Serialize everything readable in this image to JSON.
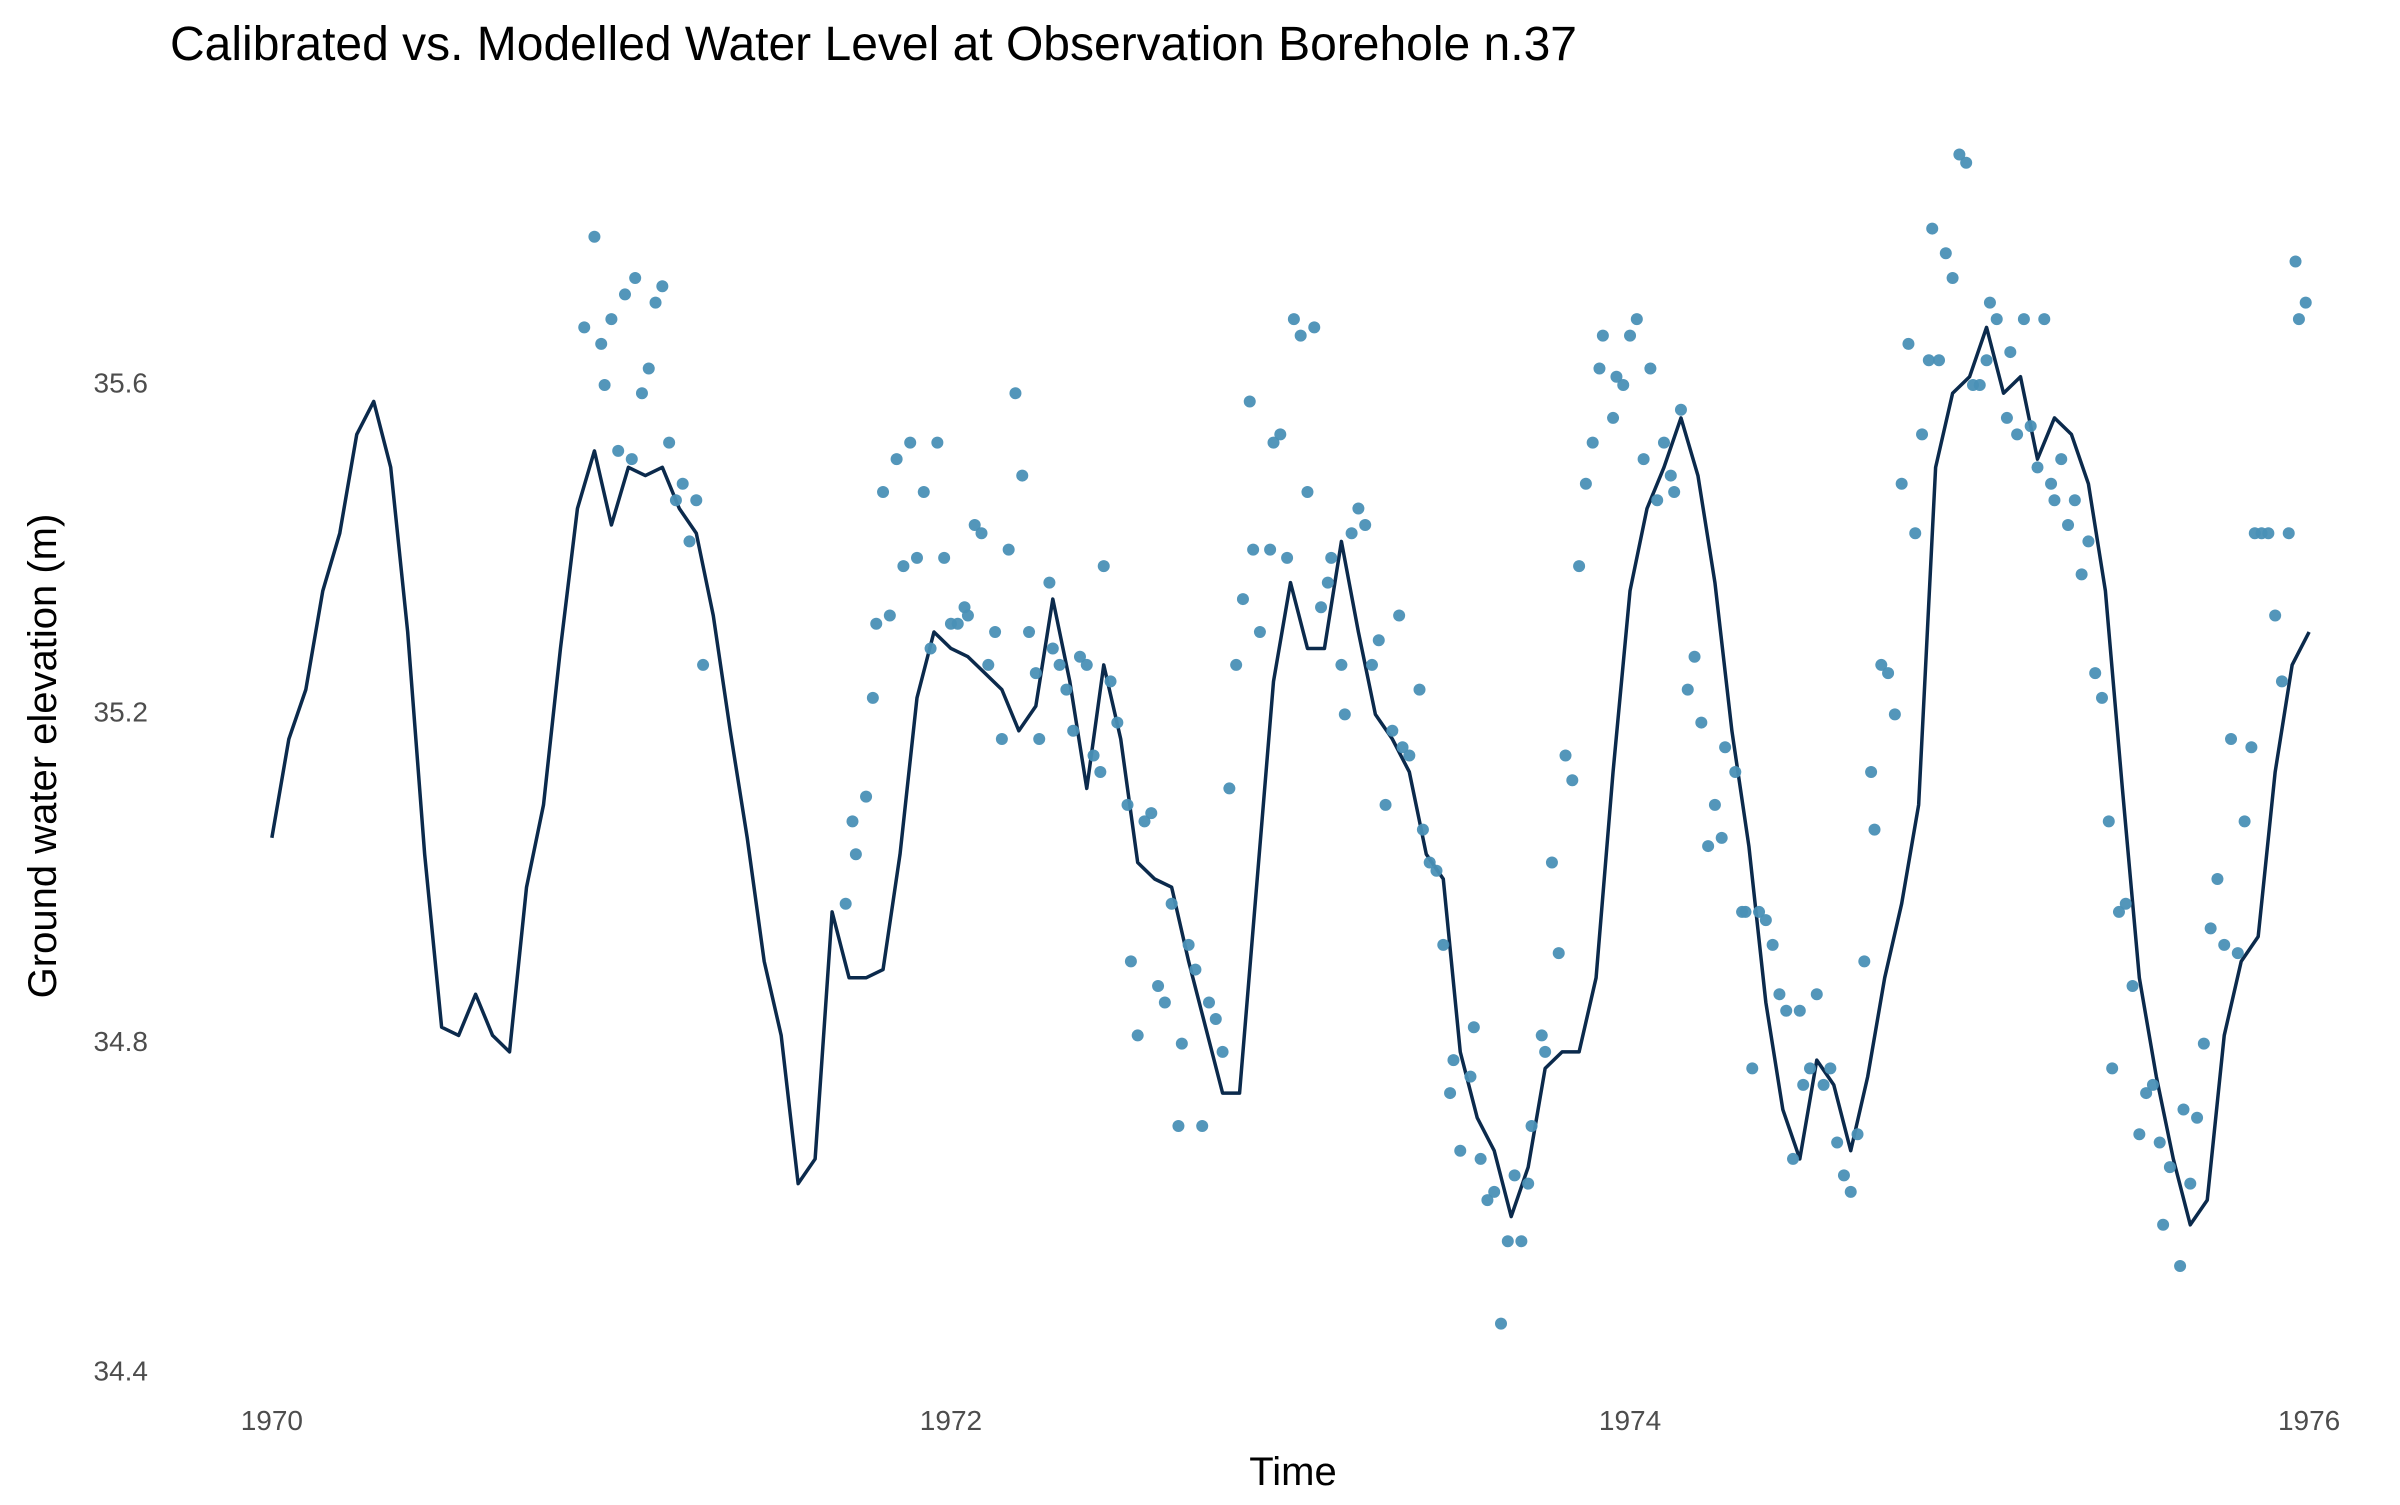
{
  "chart_data": {
    "type": "line",
    "title": "Calibrated vs. Modelled Water Level at Observation Borehole n.37",
    "x_label": "Time",
    "y_label": "Ground water elevation (m)",
    "xlim": [
      1969.7,
      1976.25
    ],
    "xticks": [
      1970,
      1972,
      1974,
      1976
    ],
    "ylim": [
      34.4,
      35.9
    ],
    "yticks": [
      34.4,
      34.8,
      35.2,
      35.6
    ],
    "grid": false,
    "series": [
      {
        "type": "line",
        "color": "#0b2a4c",
        "x": [
          1970,
          1970.05,
          1970.1,
          1970.15,
          1970.2,
          1970.25,
          1970.3,
          1970.35,
          1970.4,
          1970.45,
          1970.5,
          1970.55,
          1970.6,
          1970.65,
          1970.7,
          1970.75,
          1970.8,
          1970.85,
          1970.9,
          1970.95,
          1971,
          1971.05,
          1971.1,
          1971.15,
          1971.2,
          1971.25,
          1971.3,
          1971.35,
          1971.4,
          1971.45,
          1971.5,
          1971.55,
          1971.6,
          1971.65,
          1971.7,
          1971.75,
          1971.8,
          1971.85,
          1971.9,
          1971.95,
          1972,
          1972.05,
          1972.1,
          1972.15,
          1972.2,
          1972.25,
          1972.3,
          1972.35,
          1972.4,
          1972.45,
          1972.5,
          1972.55,
          1972.6,
          1972.65,
          1972.7,
          1972.75,
          1972.8,
          1972.85,
          1972.9,
          1972.95,
          1973,
          1973.05,
          1973.1,
          1973.15,
          1973.2,
          1973.25,
          1973.3,
          1973.35,
          1973.4,
          1973.45,
          1973.5,
          1973.55,
          1973.6,
          1973.65,
          1973.7,
          1973.75,
          1973.8,
          1973.85,
          1973.9,
          1973.95,
          1974,
          1974.05,
          1974.1,
          1974.15,
          1974.2,
          1974.25,
          1974.3,
          1974.35,
          1974.4,
          1974.45,
          1974.5,
          1974.55,
          1974.6,
          1974.65,
          1974.7,
          1974.75,
          1974.8,
          1974.85,
          1974.9,
          1974.95,
          1975,
          1975.05,
          1975.1,
          1975.15,
          1975.2,
          1975.25,
          1975.3,
          1975.35,
          1975.4,
          1975.45,
          1975.5,
          1975.55,
          1975.6,
          1975.65,
          1975.7,
          1975.75,
          1975.8,
          1975.85,
          1975.9,
          1975.95,
          1976
        ],
        "values": [
          35.05,
          35.17,
          35.23,
          35.35,
          35.42,
          35.54,
          35.58,
          35.5,
          35.3,
          35.03,
          34.82,
          34.81,
          34.86,
          34.81,
          34.79,
          34.99,
          35.09,
          35.28,
          35.45,
          35.52,
          35.43,
          35.5,
          35.49,
          35.5,
          35.45,
          35.42,
          35.32,
          35.18,
          35.05,
          34.9,
          34.81,
          34.63,
          34.66,
          34.96,
          34.88,
          34.88,
          34.89,
          35.03,
          35.22,
          35.3,
          35.28,
          35.27,
          35.25,
          35.23,
          35.18,
          35.21,
          35.34,
          35.24,
          35.11,
          35.26,
          35.17,
          35.02,
          35,
          34.99,
          34.9,
          34.82,
          34.74,
          34.74,
          34.99,
          35.24,
          35.36,
          35.28,
          35.28,
          35.41,
          35.3,
          35.2,
          35.17,
          35.13,
          35.03,
          35,
          34.79,
          34.71,
          34.67,
          34.59,
          34.65,
          34.77,
          34.79,
          34.79,
          34.88,
          35.13,
          35.35,
          35.45,
          35.5,
          35.56,
          35.49,
          35.36,
          35.18,
          35.04,
          34.85,
          34.72,
          34.66,
          34.78,
          34.75,
          34.67,
          34.76,
          34.88,
          34.97,
          35.09,
          35.5,
          35.59,
          35.61,
          35.67,
          35.59,
          35.61,
          35.51,
          35.56,
          35.54,
          35.48,
          35.35,
          35.11,
          34.88,
          34.76,
          34.66,
          34.58,
          34.61,
          34.81,
          34.9,
          34.93,
          35.13,
          35.26,
          35.3
        ]
      },
      {
        "type": "scatter",
        "color": "#4a90b6",
        "x": [
          1970.92,
          1970.95,
          1970.97,
          1970.98,
          1971,
          1971.02,
          1971.04,
          1971.06,
          1971.07,
          1971.09,
          1971.11,
          1971.13,
          1971.15,
          1971.17,
          1971.19,
          1971.21,
          1971.23,
          1971.25,
          1971.27,
          1971.69,
          1971.71,
          1971.72,
          1971.75,
          1971.77,
          1971.78,
          1971.8,
          1971.82,
          1971.84,
          1971.86,
          1971.88,
          1971.9,
          1971.92,
          1971.94,
          1971.96,
          1971.98,
          1972,
          1972.02,
          1972.04,
          1972.05,
          1972.07,
          1972.09,
          1972.11,
          1972.13,
          1972.15,
          1972.17,
          1972.19,
          1972.21,
          1972.23,
          1972.25,
          1972.26,
          1972.29,
          1972.3,
          1972.32,
          1972.34,
          1972.36,
          1972.38,
          1972.4,
          1972.42,
          1972.44,
          1972.45,
          1972.47,
          1972.49,
          1972.52,
          1972.53,
          1972.55,
          1972.57,
          1972.59,
          1972.61,
          1972.63,
          1972.65,
          1972.67,
          1972.68,
          1972.7,
          1972.72,
          1972.74,
          1972.76,
          1972.78,
          1972.8,
          1972.82,
          1972.84,
          1972.86,
          1972.88,
          1972.89,
          1972.91,
          1972.94,
          1972.95,
          1972.97,
          1972.99,
          1973.01,
          1973.03,
          1973.05,
          1973.07,
          1973.09,
          1973.11,
          1973.12,
          1973.15,
          1973.16,
          1973.18,
          1973.2,
          1973.22,
          1973.24,
          1973.26,
          1973.28,
          1973.3,
          1973.32,
          1973.33,
          1973.35,
          1973.38,
          1973.39,
          1973.41,
          1973.43,
          1973.45,
          1973.47,
          1973.48,
          1973.5,
          1973.53,
          1973.54,
          1973.56,
          1973.58,
          1973.6,
          1973.62,
          1973.64,
          1973.66,
          1973.68,
          1973.7,
          1973.71,
          1973.74,
          1973.75,
          1973.77,
          1973.79,
          1973.81,
          1973.83,
          1973.85,
          1973.87,
          1973.89,
          1973.91,
          1973.92,
          1973.95,
          1973.96,
          1973.98,
          1974,
          1974.02,
          1974.04,
          1974.06,
          1974.08,
          1974.1,
          1974.12,
          1974.13,
          1974.15,
          1974.17,
          1974.19,
          1974.21,
          1974.23,
          1974.25,
          1974.27,
          1974.28,
          1974.31,
          1974.33,
          1974.34,
          1974.36,
          1974.38,
          1974.4,
          1974.42,
          1974.44,
          1974.46,
          1974.48,
          1974.5,
          1974.51,
          1974.53,
          1974.55,
          1974.57,
          1974.59,
          1974.61,
          1974.63,
          1974.65,
          1974.67,
          1974.69,
          1974.71,
          1974.72,
          1974.74,
          1974.76,
          1974.78,
          1974.8,
          1974.82,
          1974.84,
          1974.86,
          1974.88,
          1974.89,
          1974.91,
          1974.93,
          1974.95,
          1974.97,
          1974.99,
          1975.01,
          1975.03,
          1975.05,
          1975.06,
          1975.08,
          1975.11,
          1975.12,
          1975.14,
          1975.16,
          1975.18,
          1975.2,
          1975.22,
          1975.24,
          1975.25,
          1975.27,
          1975.29,
          1975.31,
          1975.33,
          1975.35,
          1975.37,
          1975.39,
          1975.41,
          1975.42,
          1975.44,
          1975.46,
          1975.48,
          1975.5,
          1975.52,
          1975.54,
          1975.56,
          1975.57,
          1975.59,
          1975.62,
          1975.63,
          1975.65,
          1975.67,
          1975.69,
          1975.71,
          1975.73,
          1975.75,
          1975.77,
          1975.79,
          1975.81,
          1975.83,
          1975.84,
          1975.86,
          1975.88,
          1975.9,
          1975.92,
          1975.94,
          1975.96,
          1975.97,
          1975.99
        ],
        "values": [
          35.67,
          35.78,
          35.65,
          35.6,
          35.68,
          35.52,
          35.71,
          35.51,
          35.73,
          35.59,
          35.62,
          35.7,
          35.72,
          35.53,
          35.46,
          35.48,
          35.41,
          35.46,
          35.26,
          34.97,
          35.07,
          35.03,
          35.1,
          35.22,
          35.31,
          35.47,
          35.32,
          35.51,
          35.38,
          35.53,
          35.39,
          35.47,
          35.28,
          35.53,
          35.39,
          35.31,
          35.31,
          35.33,
          35.32,
          35.43,
          35.42,
          35.26,
          35.3,
          35.17,
          35.4,
          35.59,
          35.49,
          35.3,
          35.25,
          35.17,
          35.36,
          35.28,
          35.26,
          35.23,
          35.18,
          35.27,
          35.26,
          35.15,
          35.13,
          35.38,
          35.24,
          35.19,
          35.09,
          34.9,
          34.81,
          35.07,
          35.08,
          34.87,
          34.85,
          34.97,
          34.7,
          34.8,
          34.92,
          34.89,
          34.7,
          34.85,
          34.83,
          34.79,
          35.11,
          35.26,
          35.34,
          35.58,
          35.4,
          35.3,
          35.4,
          35.53,
          35.54,
          35.39,
          35.68,
          35.66,
          35.47,
          35.67,
          35.33,
          35.36,
          35.39,
          35.26,
          35.2,
          35.42,
          35.45,
          35.43,
          35.26,
          35.29,
          35.09,
          35.18,
          35.32,
          35.16,
          35.15,
          35.23,
          35.06,
          35.02,
          35.01,
          34.92,
          34.74,
          34.78,
          34.67,
          34.76,
          34.82,
          34.66,
          34.61,
          34.62,
          34.46,
          34.56,
          34.64,
          34.56,
          34.63,
          34.7,
          34.81,
          34.79,
          35.02,
          34.91,
          35.15,
          35.12,
          35.38,
          35.48,
          35.53,
          35.62,
          35.66,
          35.56,
          35.61,
          35.6,
          35.66,
          35.68,
          35.51,
          35.62,
          35.46,
          35.53,
          35.49,
          35.47,
          35.57,
          35.23,
          35.27,
          35.19,
          35.04,
          35.09,
          35.05,
          35.16,
          35.13,
          34.96,
          34.96,
          34.77,
          34.96,
          34.95,
          34.92,
          34.86,
          34.84,
          34.66,
          34.84,
          34.75,
          34.77,
          34.86,
          34.75,
          34.77,
          34.68,
          34.64,
          34.62,
          34.69,
          34.9,
          35.13,
          35.06,
          35.26,
          35.25,
          35.2,
          35.48,
          35.65,
          35.42,
          35.54,
          35.63,
          35.79,
          35.63,
          35.76,
          35.73,
          35.88,
          35.87,
          35.6,
          35.6,
          35.63,
          35.7,
          35.68,
          35.56,
          35.64,
          35.54,
          35.68,
          35.55,
          35.5,
          35.68,
          35.48,
          35.46,
          35.51,
          35.43,
          35.46,
          35.37,
          35.41,
          35.25,
          35.22,
          35.07,
          34.77,
          34.96,
          34.97,
          34.87,
          34.69,
          34.74,
          34.75,
          34.68,
          34.58,
          34.65,
          34.53,
          34.72,
          34.63,
          34.71,
          34.8,
          34.94,
          35,
          34.92,
          35.17,
          34.91,
          35.07,
          35.16,
          35.42,
          35.42,
          35.42,
          35.32,
          35.24,
          35.42,
          35.75,
          35.68,
          35.7
        ]
      }
    ]
  }
}
